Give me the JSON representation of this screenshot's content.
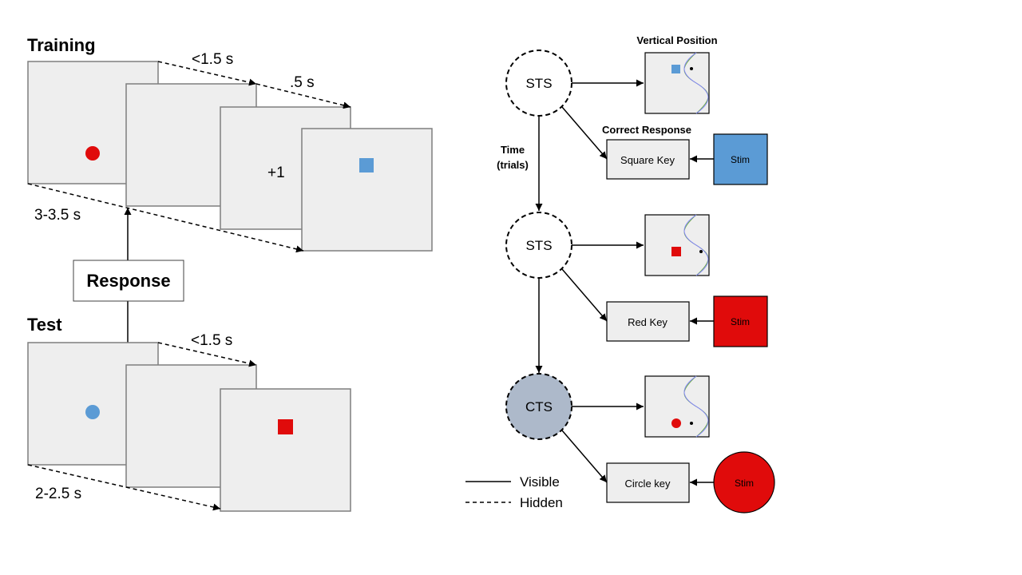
{
  "training": {
    "title": "Training",
    "t1": "<1.5 s",
    "t2": ".5 s",
    "t3": "3-3.5 s",
    "feedback": "+1"
  },
  "response_label": "Response",
  "test": {
    "title": "Test",
    "t1": "<1.5 s",
    "t2": "2-2.5 s"
  },
  "model": {
    "vertical_position": "Vertical Position",
    "correct_response": "Correct Response",
    "time_label_1": "Time",
    "time_label_2": "(trials)",
    "nodes": [
      "STS",
      "STS",
      "CTS"
    ],
    "keys": [
      "Square  Key",
      "Red Key",
      "Circle key"
    ],
    "stim_label": "Stim"
  },
  "legend": {
    "visible": "Visible",
    "hidden": "Hidden"
  },
  "colors": {
    "screen_fill": "#eeeeee",
    "screen_stroke": "#7f7f7f",
    "red": "#e00b0b",
    "blue": "#5b9bd5",
    "cts_fill": "#adb9ca",
    "curve_green": "#70ad47",
    "curve_blue": "#7f7fff"
  }
}
